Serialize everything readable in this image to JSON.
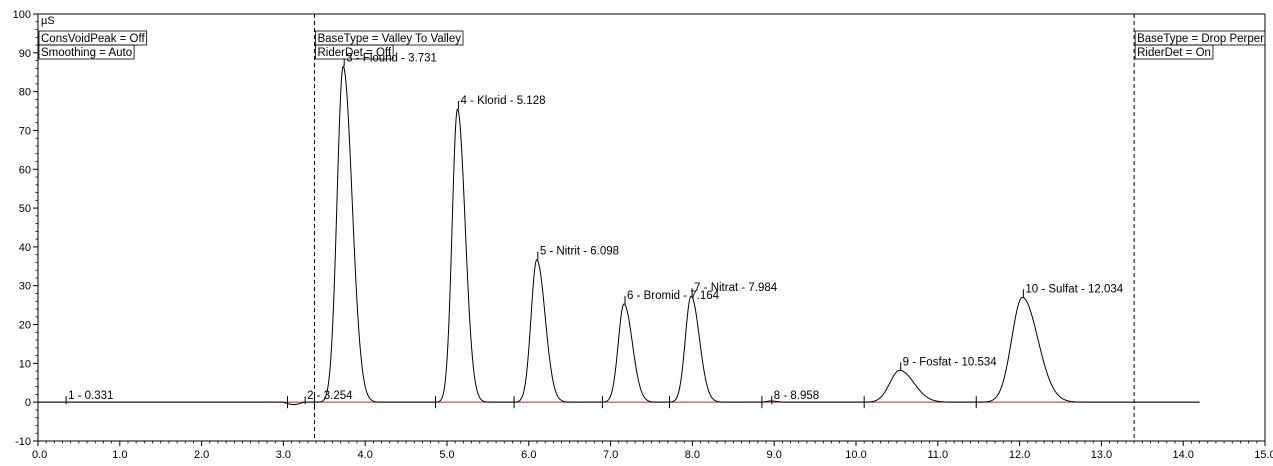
{
  "chart_data": {
    "type": "line",
    "ylabel": "µS",
    "xlim": [
      0.0,
      15.0
    ],
    "ylim": [
      -10,
      100
    ],
    "x_ticks": [
      0.0,
      1.0,
      2.0,
      3.0,
      4.0,
      5.0,
      6.0,
      7.0,
      8.0,
      9.0,
      10.0,
      11.0,
      12.0,
      13.0,
      14.0,
      15.0
    ],
    "x_tick_labels": [
      "0.0",
      "1.0",
      "2.0",
      "3.0",
      "4.0",
      "5.0",
      "6.0",
      "7.0",
      "8.0",
      "9.0",
      "10.0",
      "11.0",
      "12.0",
      "13.0",
      "14.0",
      "15.0"
    ],
    "y_ticks": [
      -10,
      0,
      10,
      20,
      30,
      40,
      50,
      60,
      70,
      80,
      90,
      100
    ],
    "y_tick_labels": [
      "-10",
      "0",
      "10",
      "20",
      "30",
      "40",
      "50",
      "60",
      "70",
      "80",
      "90",
      "100"
    ],
    "grid": false,
    "series_color": "#000000",
    "baseline_color": "#b03030",
    "peaks": [
      {
        "label": "1 - 0.331",
        "rt": 0.331,
        "height": 0,
        "width": 0.03
      },
      {
        "label": "2 - 3.254",
        "rt": 3.254,
        "height": 0,
        "width": 0.03
      },
      {
        "label": "3 - Flourid - 3.731",
        "rt": 3.731,
        "height": 86.5,
        "width": 0.075
      },
      {
        "label": "4 - Klorid - 5.128",
        "rt": 5.128,
        "height": 75.5,
        "width": 0.065
      },
      {
        "label": "5 - Nitrit - 6.098",
        "rt": 6.098,
        "height": 36.7,
        "width": 0.07
      },
      {
        "label": "6 - Bromid - 7.164",
        "rt": 7.164,
        "height": 25.3,
        "width": 0.07
      },
      {
        "label": "7 - Nitrat - 7.984",
        "rt": 7.984,
        "height": 27.3,
        "width": 0.07
      },
      {
        "label": "8 - 8.958",
        "rt": 8.958,
        "height": 0.3,
        "width": 0.05
      },
      {
        "label": "9 - Fosfat - 10.534",
        "rt": 10.534,
        "height": 8.2,
        "width": 0.12
      },
      {
        "label": "10 - Sulfat - 12.034",
        "rt": 12.034,
        "height": 27.0,
        "width": 0.13
      }
    ],
    "peak_markers": [
      3.05,
      3.38,
      4.86,
      5.82,
      6.9,
      7.72,
      8.85,
      10.1,
      11.47
    ],
    "annotations": [
      {
        "x": 0.0,
        "lines": [
          "ConsVoidPeak = Off",
          "Smoothing = Auto"
        ],
        "dashed_line": false
      },
      {
        "x": 3.38,
        "lines": [
          "BaseType = Valley To Valley",
          "RiderDet = Off"
        ],
        "dashed_line": true
      },
      {
        "x": 13.4,
        "lines": [
          "BaseType = Drop Perper",
          "RiderDet = On"
        ],
        "dashed_line": true
      }
    ]
  }
}
